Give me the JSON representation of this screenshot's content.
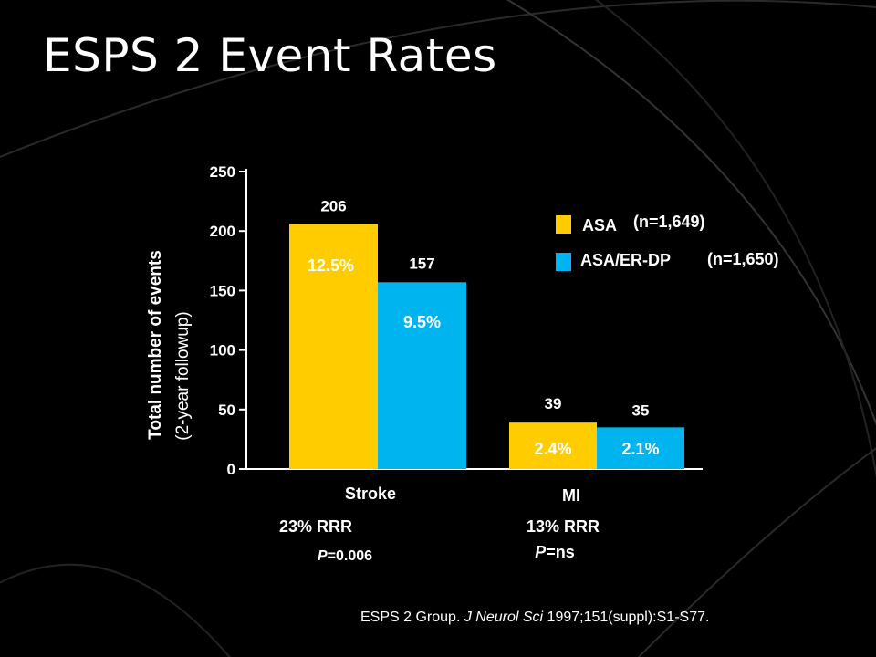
{
  "slide": {
    "title": "ESPS 2 Event Rates",
    "citation": {
      "before": "ESPS 2 Group. ",
      "journal": "J Neurol Sci",
      "after": " 1997;151(suppl):S1-S77."
    }
  },
  "colors": {
    "background": "#000000",
    "asa": "#FFCC00",
    "asa_er_dp": "#00B4F0",
    "text": "#FFFFFF"
  },
  "chart_data": {
    "type": "bar",
    "categories": [
      "Stroke",
      "MI"
    ],
    "series": [
      {
        "name": "ASA",
        "n_label": "(n=1,649)",
        "values": [
          206,
          39
        ],
        "percent_labels": [
          "12.5%",
          "2.4%"
        ],
        "color": "#FFCC00"
      },
      {
        "name": "ASA/ER-DP",
        "n_label": "(n=1,650)",
        "values": [
          157,
          35
        ],
        "percent_labels": [
          "9.5%",
          "2.1%"
        ],
        "color": "#00B4F0"
      }
    ],
    "ylabel": "Total number of events",
    "ylabel_sub": "(2-year followup)",
    "ylim": [
      0,
      250
    ],
    "yticks": [
      0,
      50,
      100,
      150,
      200,
      250
    ],
    "annotations": [
      {
        "rrr": "23% RRR",
        "p_italic": "P",
        "p_rest": "=0.006"
      },
      {
        "rrr": "13% RRR",
        "p_italic": "P",
        "p_rest": "=ns"
      }
    ],
    "legend_position": "top-right",
    "grid": false
  }
}
